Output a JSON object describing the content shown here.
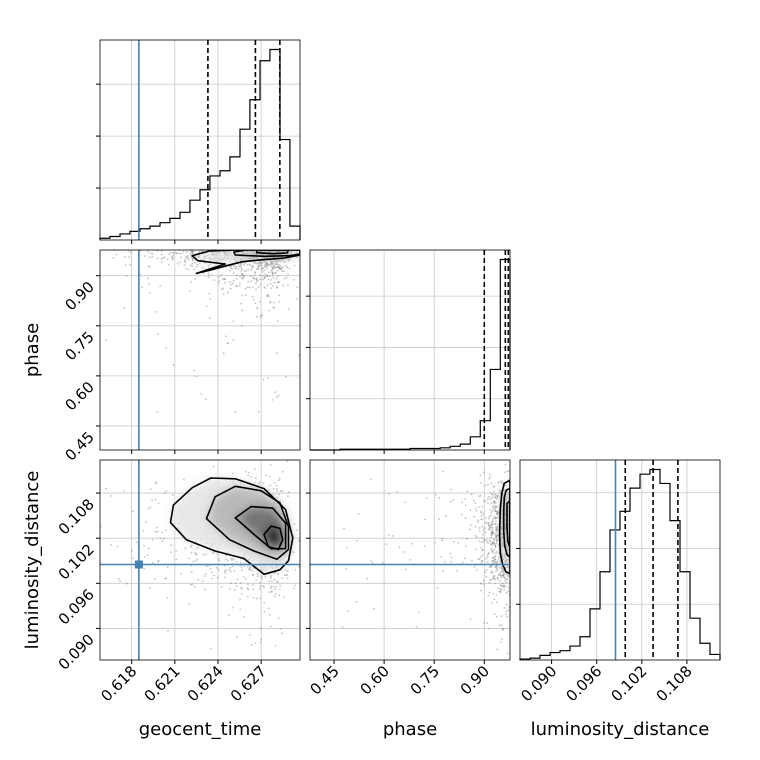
{
  "chart_data": {
    "type": "corner",
    "parameters": [
      "geocent_time",
      "phase",
      "luminosity_distance"
    ],
    "truth": {
      "geocent_time": 0.6185,
      "phase": null,
      "luminosity_distance": 0.0985
    },
    "truth_color": "#4682b4",
    "grid": true,
    "axes": {
      "geocent_time": {
        "lim": [
          0.6158,
          0.6297
        ],
        "ticks": [
          0.618,
          0.621,
          0.624,
          0.627
        ],
        "tick_labels": [
          "0.618",
          "0.621",
          "0.624",
          "0.627"
        ]
      },
      "phase": {
        "lim": [
          0.378,
          0.977
        ],
        "ticks": [
          0.45,
          0.6,
          0.75,
          0.9
        ],
        "tick_labels": [
          "0.45",
          "0.60",
          "0.75",
          "0.90"
        ]
      },
      "luminosity_distance": {
        "lim": [
          0.0858,
          0.1124
        ],
        "ticks": [
          0.09,
          0.096,
          0.102,
          0.108
        ],
        "tick_labels": [
          "0.090",
          "0.096",
          "0.102",
          "0.108"
        ]
      }
    },
    "histograms": {
      "geocent_time": {
        "bin_edges": [
          0.6158,
          0.61649,
          0.61719,
          0.61788,
          0.61858,
          0.61927,
          0.61997,
          0.62066,
          0.62136,
          0.62205,
          0.62275,
          0.62344,
          0.62414,
          0.62483,
          0.62553,
          0.62622,
          0.62692,
          0.62761,
          0.62831,
          0.629,
          0.6297
        ],
        "counts": [
          2,
          4,
          7,
          10,
          13,
          16,
          20,
          25,
          32,
          46,
          58,
          74,
          80,
          96,
          128,
          162,
          207,
          220,
          116,
          16
        ],
        "quantiles": [
          0.6233,
          0.6266,
          0.6283
        ]
      },
      "phase": {
        "bin_edges": [
          0.378,
          0.408,
          0.438,
          0.468,
          0.498,
          0.528,
          0.558,
          0.588,
          0.618,
          0.648,
          0.678,
          0.708,
          0.738,
          0.768,
          0.798,
          0.828,
          0.858,
          0.888,
          0.918,
          0.948,
          0.977
        ],
        "counts": [
          0,
          0,
          0,
          1,
          1,
          1,
          1,
          1,
          1,
          1,
          2,
          2,
          2,
          3,
          5,
          8,
          18,
          40,
          110,
          260
        ],
        "quantiles": [
          0.9,
          0.963,
          0.972
        ]
      },
      "luminosity_distance": {
        "bin_edges": [
          0.0858,
          0.08713,
          0.08846,
          0.08979,
          0.09112,
          0.09245,
          0.09378,
          0.09511,
          0.09644,
          0.09777,
          0.0991,
          0.10043,
          0.10176,
          0.10309,
          0.10442,
          0.10575,
          0.10708,
          0.10841,
          0.10974,
          0.11107,
          0.1124
        ],
        "counts": [
          1,
          2,
          5,
          8,
          10,
          15,
          25,
          55,
          95,
          140,
          160,
          185,
          200,
          205,
          190,
          150,
          95,
          45,
          18,
          6
        ],
        "quantiles": [
          0.0998,
          0.1035,
          0.1068
        ]
      }
    },
    "density_2d": [
      {
        "x": "geocent_time",
        "y": "phase",
        "contours": [
          [
            [
              0.6225,
              0.907
            ],
            [
              0.6234,
              0.916
            ],
            [
              0.6246,
              0.93
            ],
            [
              0.6257,
              0.942
            ],
            [
              0.6271,
              0.948
            ],
            [
              0.6286,
              0.953
            ],
            [
              0.6297,
              0.962
            ],
            [
              0.6297,
              0.977
            ],
            [
              0.6255,
              0.977
            ],
            [
              0.6234,
              0.974
            ],
            [
              0.6222,
              0.96
            ],
            [
              0.6226,
              0.945
            ],
            [
              0.6245,
              0.935
            ]
          ],
          [
            [
              0.6252,
              0.962
            ],
            [
              0.6272,
              0.958
            ],
            [
              0.629,
              0.96
            ],
            [
              0.6297,
              0.965
            ],
            [
              0.6297,
              0.977
            ],
            [
              0.626,
              0.977
            ],
            [
              0.6251,
              0.971
            ]
          ],
          [
            [
              0.6267,
              0.969
            ],
            [
              0.6278,
              0.966
            ],
            [
              0.6288,
              0.968
            ],
            [
              0.6289,
              0.977
            ],
            [
              0.6267,
              0.977
            ]
          ]
        ]
      },
      {
        "x": "geocent_time",
        "y": "luminosity_distance",
        "contours": [
          [
            [
              0.6207,
              0.1041
            ],
            [
              0.6218,
              0.1018
            ],
            [
              0.6238,
              0.1003
            ],
            [
              0.6258,
              0.0993
            ],
            [
              0.6272,
              0.0972
            ],
            [
              0.6283,
              0.0978
            ],
            [
              0.6289,
              0.099
            ],
            [
              0.6292,
              0.102
            ],
            [
              0.6287,
              0.1058
            ],
            [
              0.6272,
              0.1086
            ],
            [
              0.6252,
              0.1099
            ],
            [
              0.6235,
              0.11
            ],
            [
              0.6222,
              0.1087
            ],
            [
              0.6209,
              0.1064
            ]
          ],
          [
            [
              0.6232,
              0.1046
            ],
            [
              0.6248,
              0.1018
            ],
            [
              0.6265,
              0.1003
            ],
            [
              0.6281,
              0.0992
            ],
            [
              0.6289,
              0.1005
            ],
            [
              0.6289,
              0.1035
            ],
            [
              0.6283,
              0.1067
            ],
            [
              0.627,
              0.1083
            ],
            [
              0.6252,
              0.1089
            ],
            [
              0.6238,
              0.1075
            ]
          ],
          [
            [
              0.6252,
              0.1047
            ],
            [
              0.6265,
              0.1025
            ],
            [
              0.6277,
              0.1006
            ],
            [
              0.6287,
              0.1006
            ],
            [
              0.6287,
              0.104
            ],
            [
              0.6278,
              0.106
            ],
            [
              0.6263,
              0.1062
            ]
          ],
          [
            [
              0.6272,
              0.1025
            ],
            [
              0.6275,
              0.1009
            ],
            [
              0.6282,
              0.1005
            ],
            [
              0.6285,
              0.1018
            ],
            [
              0.6283,
              0.1033
            ],
            [
              0.6277,
              0.1036
            ]
          ]
        ]
      },
      {
        "x": "phase",
        "y": "luminosity_distance",
        "contours": [
          [
            [
              0.953,
              0.1081
            ],
            [
              0.96,
              0.1093
            ],
            [
              0.977,
              0.1097
            ],
            [
              0.977,
              0.0973
            ],
            [
              0.965,
              0.0975
            ],
            [
              0.955,
              0.0985
            ],
            [
              0.948,
              0.1
            ],
            [
              0.946,
              0.1023
            ],
            [
              0.948,
              0.106
            ]
          ],
          [
            [
              0.96,
              0.1074
            ],
            [
              0.966,
              0.1084
            ],
            [
              0.977,
              0.1086
            ],
            [
              0.977,
              0.0995
            ],
            [
              0.968,
              0.0998
            ],
            [
              0.961,
              0.101
            ],
            [
              0.958,
              0.103
            ],
            [
              0.958,
              0.1055
            ]
          ],
          [
            [
              0.968,
              0.1066
            ],
            [
              0.977,
              0.107
            ],
            [
              0.977,
              0.1008
            ],
            [
              0.971,
              0.1015
            ],
            [
              0.968,
              0.1035
            ]
          ]
        ]
      }
    ]
  }
}
